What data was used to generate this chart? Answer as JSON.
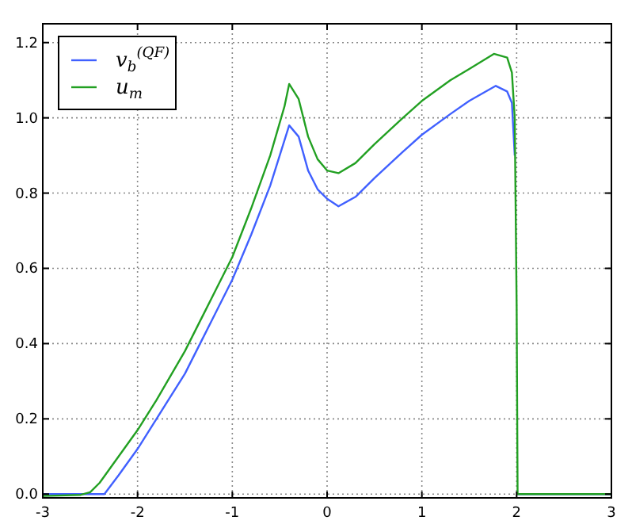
{
  "chart_data": {
    "type": "line",
    "xlim": [
      -3,
      3
    ],
    "ylim": [
      -0.01,
      1.25
    ],
    "xticks": [
      -3,
      -2,
      -1,
      0,
      1,
      2,
      3
    ],
    "yticks": [
      {
        "value": 0,
        "label": "0.0"
      },
      {
        "value": 0.2,
        "label": "0.2"
      },
      {
        "value": 0.4,
        "label": "0.4"
      },
      {
        "value": 0.6,
        "label": "0.6"
      },
      {
        "value": 0.8,
        "label": "0.8"
      },
      {
        "value": 1.0,
        "label": "1.0"
      },
      {
        "value": 1.2,
        "label": "1.2"
      }
    ],
    "grid": true,
    "legend": "top left",
    "line_style": "solid",
    "marker": "none",
    "x": [
      -3,
      -2.35,
      -2.2,
      -2,
      -1.8,
      -1.5,
      -1.2,
      -1,
      -0.8,
      -0.6,
      -0.45,
      -0.4,
      -0.3,
      -0.2,
      -0.1,
      0,
      0.12,
      0.3,
      0.5,
      0.8,
      1,
      1.3,
      1.5,
      1.78,
      1.9,
      1.95,
      1.98,
      2.0,
      2.01,
      3
    ],
    "series": [
      {
        "name": "v$_{b}$$^{(QF)}$",
        "color": "#4060ff",
        "values": [
          0,
          0,
          0.05,
          0.12,
          0.2,
          0.32,
          0.47,
          0.57,
          0.69,
          0.82,
          0.94,
          0.98,
          0.95,
          0.86,
          0.81,
          0.785,
          0.765,
          0.79,
          0.84,
          0.91,
          0.955,
          1.01,
          1.045,
          1.085,
          1.07,
          1.04,
          0.9,
          null,
          0,
          0
        ]
      },
      {
        "name": "u$_{m}$",
        "color": "#22a022",
        "x": [
          -3,
          -2.6,
          -2.5,
          -2.4,
          -2.2,
          -2,
          -1.8,
          -1.5,
          -1.2,
          -1,
          -0.8,
          -0.6,
          -0.45,
          -0.4,
          -0.3,
          -0.2,
          -0.1,
          0,
          0.12,
          0.3,
          0.5,
          0.8,
          1,
          1.3,
          1.5,
          1.76,
          1.9,
          1.95,
          1.98,
          2.0,
          2.01,
          3
        ],
        "values": [
          -0.005,
          -0.002,
          0.005,
          0.03,
          0.1,
          0.17,
          0.25,
          0.38,
          0.53,
          0.63,
          0.76,
          0.9,
          1.03,
          1.09,
          1.05,
          0.95,
          0.89,
          0.86,
          0.853,
          0.88,
          0.93,
          1.0,
          1.045,
          1.1,
          1.13,
          1.17,
          1.16,
          1.12,
          1.0,
          0.5,
          0,
          0
        ]
      }
    ]
  }
}
